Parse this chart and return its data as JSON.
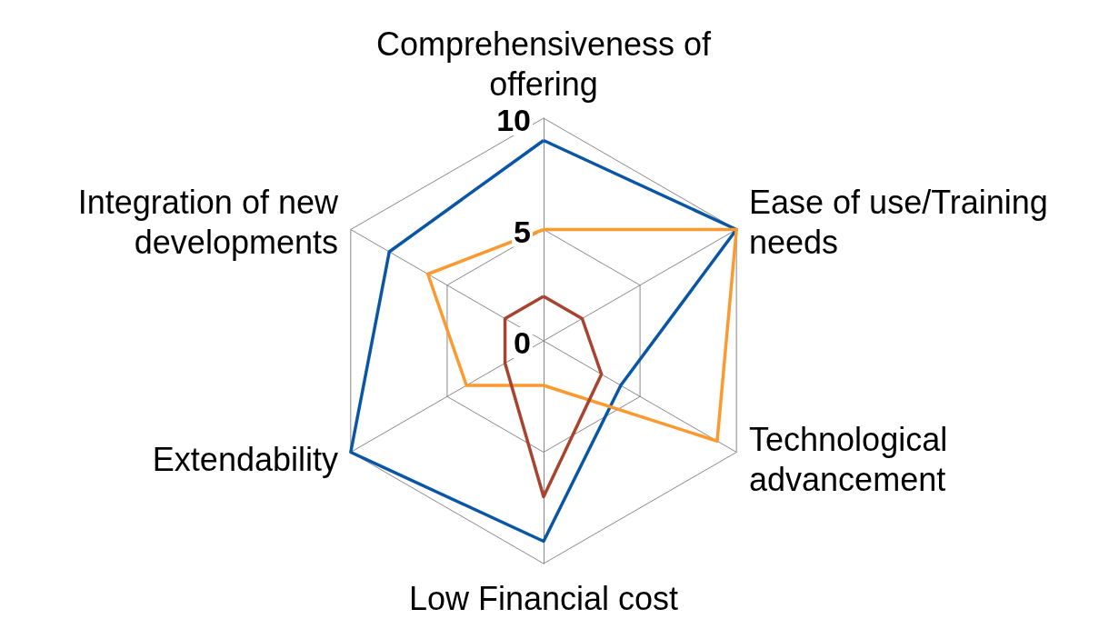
{
  "chart_data": {
    "type": "radar",
    "categories": [
      "Comprehensiveness of offering",
      "Ease of use/Training needs",
      "Technological advancement",
      "Low Financial cost",
      "Extendability",
      "Integration of new developments"
    ],
    "series": [
      {
        "color": "#0a56a6",
        "values": [
          9,
          10,
          4,
          9,
          10,
          8
        ]
      },
      {
        "color": "#fd9a2f",
        "values": [
          5,
          10,
          9,
          2,
          4,
          6
        ]
      },
      {
        "color": "#a8432f",
        "values": [
          2,
          2,
          3,
          7,
          2,
          2
        ]
      }
    ],
    "ylim": [
      0,
      10
    ],
    "yticks": [
      0,
      5,
      10
    ],
    "grid": true,
    "marker": "none",
    "line_style": "solid"
  }
}
